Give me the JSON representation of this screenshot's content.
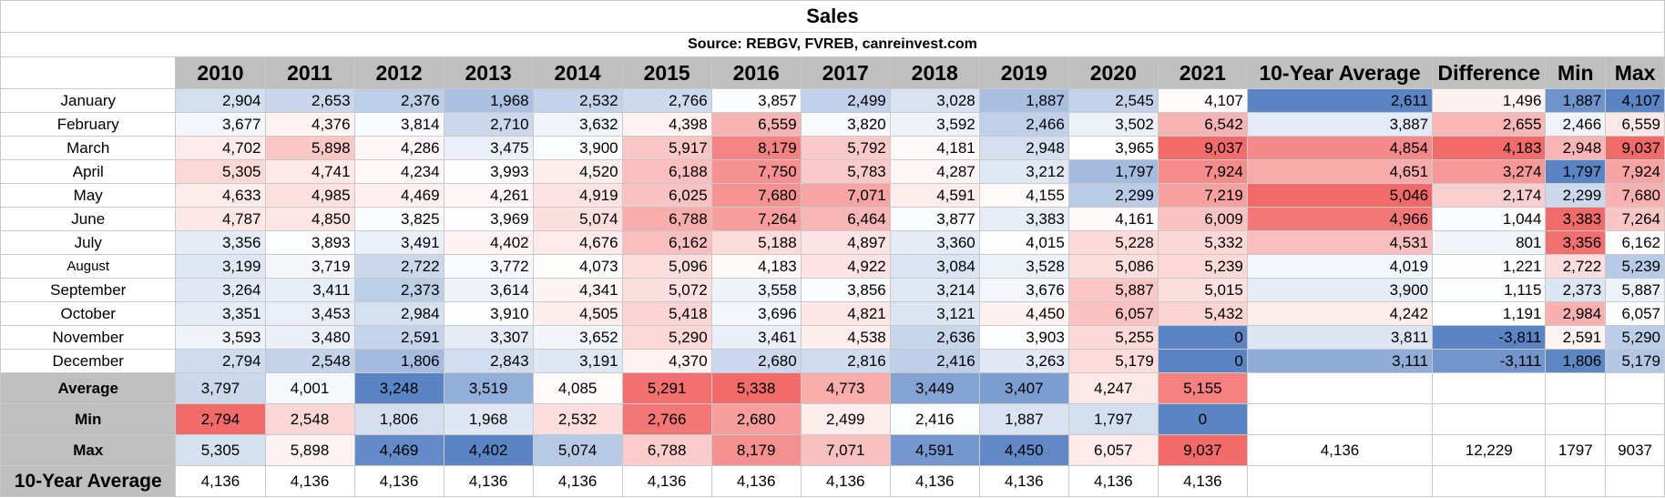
{
  "title": "Sales",
  "source": "Source: REBGV, FVREB, canreinvest.com",
  "headers": [
    "2010",
    "2011",
    "2012",
    "2013",
    "2014",
    "2015",
    "2016",
    "2017",
    "2018",
    "2019",
    "2020",
    "2021",
    "10-Year Average",
    "Difference",
    "Min",
    "Max"
  ],
  "months": [
    {
      "label": "January",
      "cells": [
        "2,904",
        "2,653",
        "2,376",
        "1,968",
        "2,532",
        "2,766",
        "3,857",
        "2,499",
        "3,028",
        "1,887",
        "2,545",
        "4,107",
        "2,611",
        "1,496",
        "1,887",
        "4,107"
      ]
    },
    {
      "label": "February",
      "cells": [
        "3,677",
        "4,376",
        "3,814",
        "2,710",
        "3,632",
        "4,398",
        "6,559",
        "3,820",
        "3,592",
        "2,466",
        "3,502",
        "6,542",
        "3,887",
        "2,655",
        "2,466",
        "6,559"
      ]
    },
    {
      "label": "March",
      "cells": [
        "4,702",
        "5,898",
        "4,286",
        "3,475",
        "3,900",
        "5,917",
        "8,179",
        "5,792",
        "4,181",
        "2,948",
        "3,965",
        "9,037",
        "4,854",
        "4,183",
        "2,948",
        "9,037"
      ]
    },
    {
      "label": "April",
      "cells": [
        "5,305",
        "4,741",
        "4,234",
        "3,993",
        "4,520",
        "6,188",
        "7,750",
        "5,783",
        "4,287",
        "3,212",
        "1,797",
        "7,924",
        "4,651",
        "3,274",
        "1,797",
        "7,924"
      ]
    },
    {
      "label": "May",
      "cells": [
        "4,633",
        "4,985",
        "4,469",
        "4,261",
        "4,919",
        "6,025",
        "7,680",
        "7,071",
        "4,591",
        "4,155",
        "2,299",
        "7,219",
        "5,046",
        "2,174",
        "2,299",
        "7,680"
      ]
    },
    {
      "label": "June",
      "cells": [
        "4,787",
        "4,850",
        "3,825",
        "3,969",
        "5,074",
        "6,788",
        "7,264",
        "6,464",
        "3,877",
        "3,383",
        "4,161",
        "6,009",
        "4,966",
        "1,044",
        "3,383",
        "7,264"
      ]
    },
    {
      "label": "July",
      "cells": [
        "3,356",
        "3,893",
        "3,491",
        "4,402",
        "4,676",
        "6,162",
        "5,188",
        "4,897",
        "3,360",
        "4,015",
        "5,228",
        "5,332",
        "4,531",
        "801",
        "3,356",
        "6,162"
      ]
    },
    {
      "label": "August",
      "cells": [
        "3,199",
        "3,719",
        "2,722",
        "3,772",
        "4,073",
        "5,096",
        "4,183",
        "4,922",
        "3,084",
        "3,528",
        "5,086",
        "5,239",
        "4,019",
        "1,221",
        "2,722",
        "5,239"
      ]
    },
    {
      "label": "September",
      "cells": [
        "3,264",
        "3,411",
        "2,373",
        "3,614",
        "4,341",
        "5,072",
        "3,558",
        "3,856",
        "3,214",
        "3,676",
        "5,887",
        "5,015",
        "3,900",
        "1,115",
        "2,373",
        "5,887"
      ]
    },
    {
      "label": "October",
      "cells": [
        "3,351",
        "3,453",
        "2,984",
        "3,910",
        "4,505",
        "5,418",
        "3,696",
        "4,821",
        "3,121",
        "4,450",
        "6,057",
        "5,432",
        "4,242",
        "1,191",
        "2,984",
        "6,057"
      ]
    },
    {
      "label": "November",
      "cells": [
        "3,593",
        "3,480",
        "2,591",
        "3,307",
        "3,652",
        "5,290",
        "3,461",
        "4,538",
        "2,636",
        "3,903",
        "5,255",
        "0",
        "3,811",
        "-3,811",
        "2,591",
        "5,290"
      ]
    },
    {
      "label": "December",
      "cells": [
        "2,794",
        "2,548",
        "1,806",
        "2,843",
        "3,191",
        "4,370",
        "2,680",
        "2,816",
        "2,416",
        "3,263",
        "5,179",
        "0",
        "3,111",
        "-3,111",
        "1,806",
        "5,179"
      ]
    }
  ],
  "stats": [
    {
      "label": "Average",
      "cells": [
        "3,797",
        "4,001",
        "3,248",
        "3,519",
        "4,085",
        "5,291",
        "5,338",
        "4,773",
        "3,449",
        "3,407",
        "4,247",
        "5,155",
        "",
        "",
        "",
        ""
      ]
    },
    {
      "label": "Min",
      "cells": [
        "2,794",
        "2,548",
        "1,806",
        "1,968",
        "2,532",
        "2,766",
        "2,680",
        "2,499",
        "2,416",
        "1,887",
        "1,797",
        "0",
        "",
        "",
        "",
        ""
      ]
    },
    {
      "label": "Max",
      "cells": [
        "5,305",
        "5,898",
        "4,469",
        "4,402",
        "5,074",
        "6,788",
        "8,179",
        "7,071",
        "4,591",
        "4,450",
        "6,057",
        "9,037",
        "4,136",
        "12,229",
        "1797",
        "9037"
      ]
    },
    {
      "label": "10-Year Average",
      "cells": [
        "4,136",
        "4,136",
        "4,136",
        "4,136",
        "4,136",
        "4,136",
        "4,136",
        "4,136",
        "4,136",
        "4,136",
        "4,136",
        "4,136",
        "",
        "",
        "",
        ""
      ]
    }
  ],
  "colors": {
    "header_gray": "#bfbfbf",
    "scale_low": "#5b84c4",
    "scale_mid": "#ffffff",
    "scale_high": "#f26b6b",
    "negative_text": "#e03030"
  }
}
